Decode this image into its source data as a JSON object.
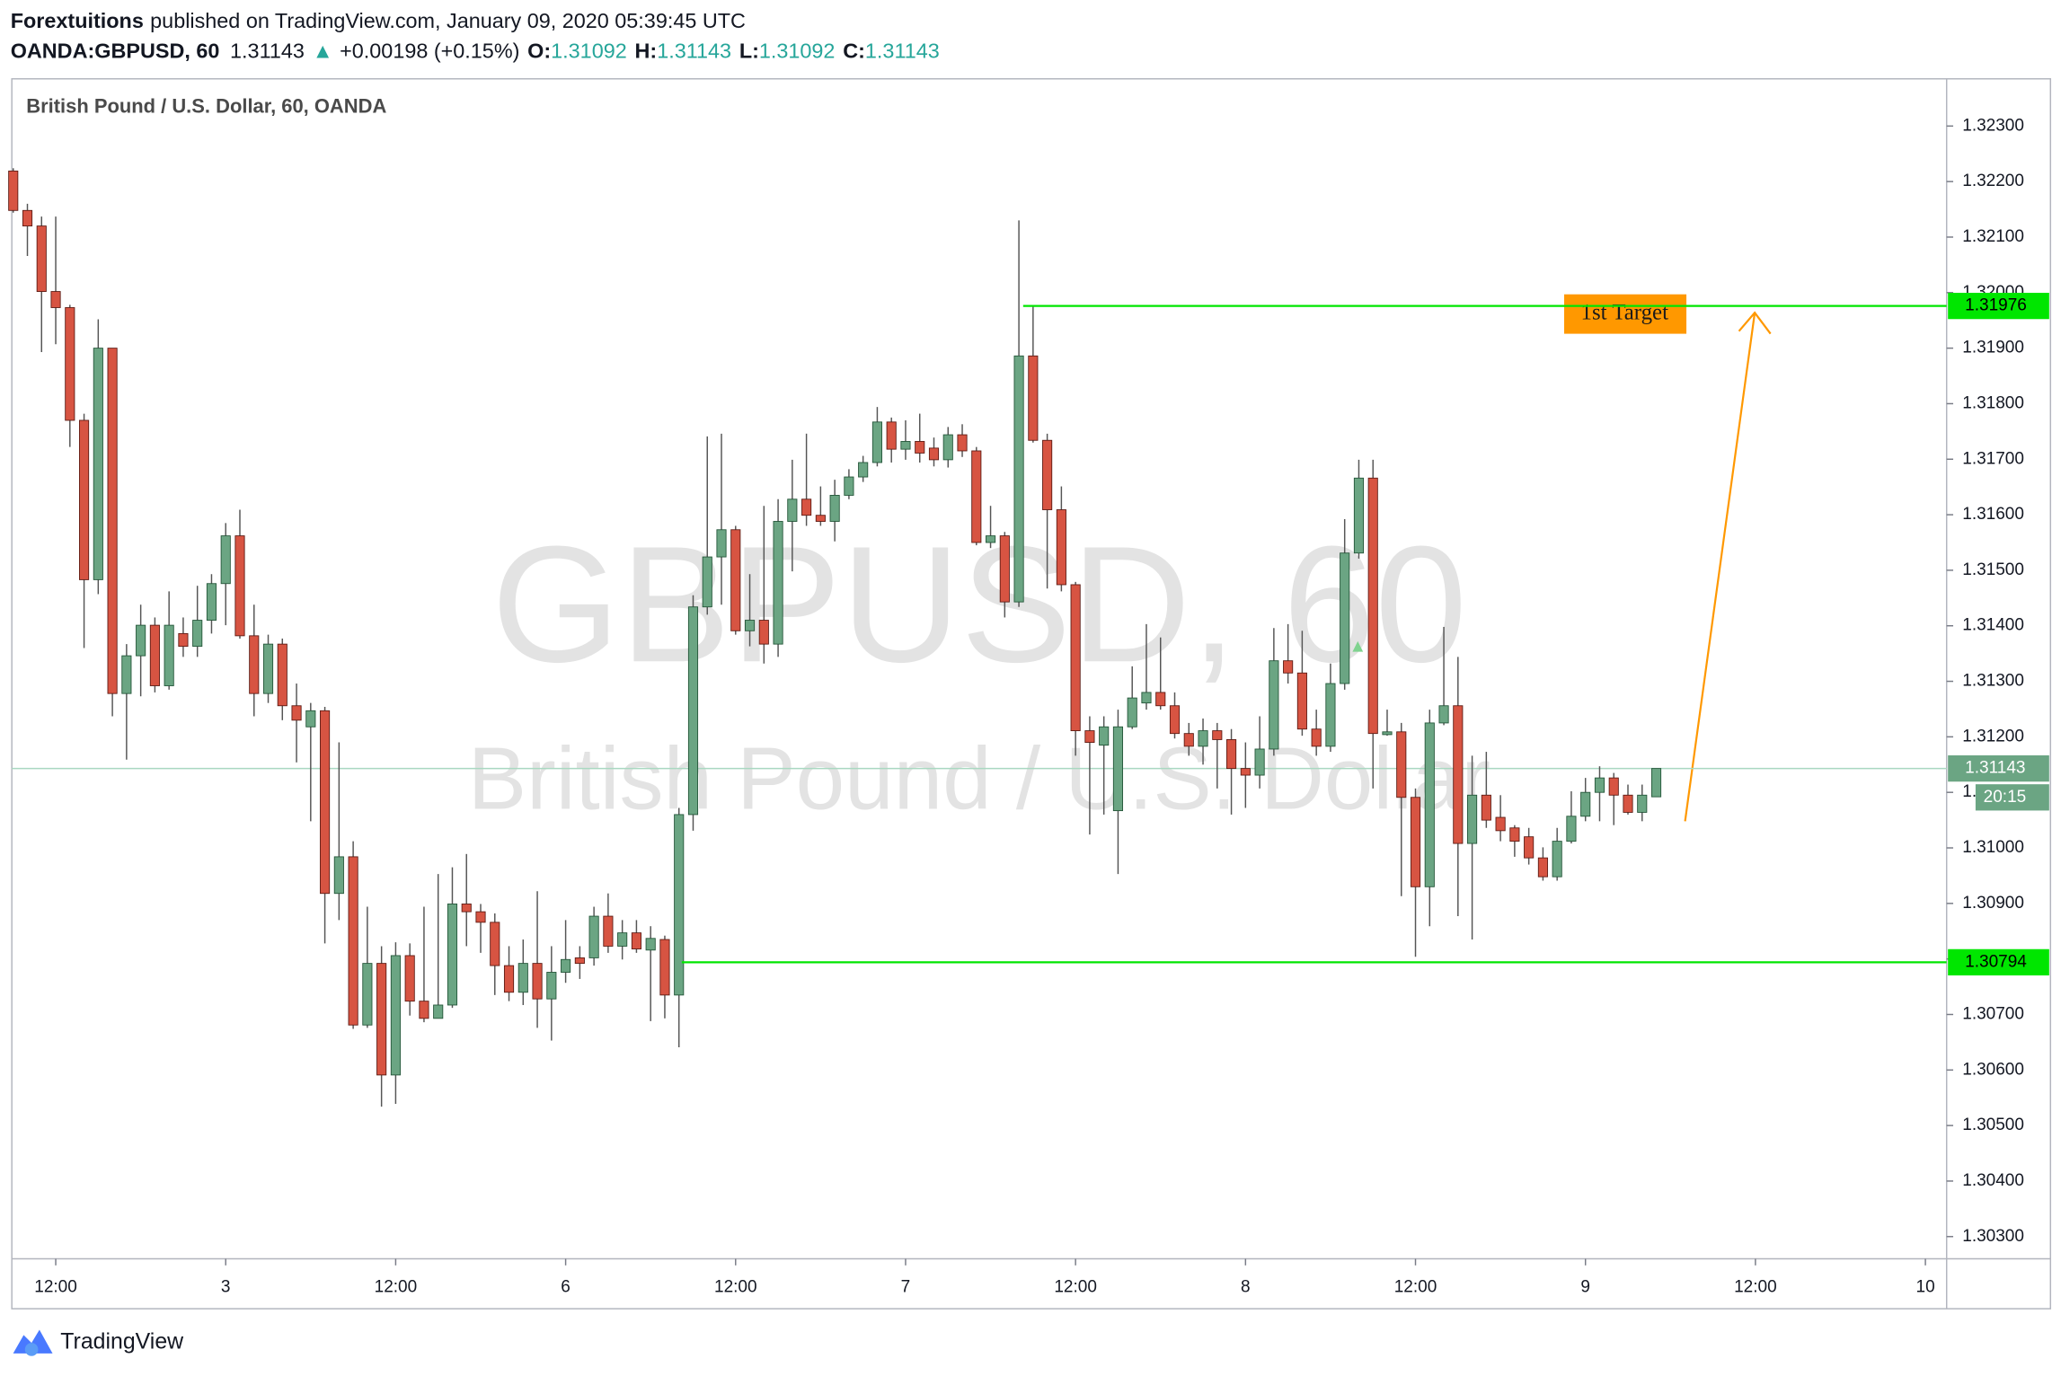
{
  "header": {
    "publisher": "Forextuitions",
    "published_text": "published on TradingView.com, January 09, 2020 05:39:45 UTC"
  },
  "symbol_bar": {
    "symbol": "OANDA:GBPUSD, 60",
    "last": 1.31143,
    "arrow": "▲",
    "change": "+0.00198 (+0.15%)",
    "o_label": "O:",
    "open": 1.31092,
    "h_label": "H:",
    "high": 1.31143,
    "l_label": "L:",
    "low": 1.31092,
    "c_label": "C:",
    "close": 1.31143
  },
  "footer": {
    "brand": "TradingView"
  },
  "chart_data": {
    "type": "candlestick",
    "title": "British Pound / U.S. Dollar, 60, OANDA",
    "watermark": "GBPUSD, 60",
    "watermark_subtitle": "British Pound / U.S. Dollar",
    "up_color": "#6ba583",
    "down_color": "#d75442",
    "up_border": "#225437",
    "down_border": "#5b1a13",
    "wick_color": "#555555",
    "grid": false,
    "xlim": [
      -0.1,
      136.5
    ],
    "xticks": [
      {
        "value": 3,
        "label": "12:00"
      },
      {
        "value": 15,
        "label": "3"
      },
      {
        "value": 27,
        "label": "12:00"
      },
      {
        "value": 39,
        "label": "6"
      },
      {
        "value": 51,
        "label": "12:00"
      },
      {
        "value": 63,
        "label": "7"
      },
      {
        "value": 75,
        "label": "12:00"
      },
      {
        "value": 87,
        "label": "8"
      },
      {
        "value": 99,
        "label": "12:00"
      },
      {
        "value": 111,
        "label": "9"
      },
      {
        "value": 123,
        "label": "12:00"
      },
      {
        "value": 135,
        "label": "10"
      }
    ],
    "ylim": [
      1.3026,
      1.32385
    ],
    "yticks": [
      {
        "value": 1.303,
        "label": "1.30300"
      },
      {
        "value": 1.304,
        "label": "1.30400"
      },
      {
        "value": 1.305,
        "label": "1.30500"
      },
      {
        "value": 1.306,
        "label": "1.30600"
      },
      {
        "value": 1.307,
        "label": "1.30700"
      },
      {
        "value": 1.308,
        "label": "1.30800"
      },
      {
        "value": 1.309,
        "label": "1.30900"
      },
      {
        "value": 1.31,
        "label": "1.31000"
      },
      {
        "value": 1.311,
        "label": "1.31100"
      },
      {
        "value": 1.312,
        "label": "1.31200"
      },
      {
        "value": 1.313,
        "label": "1.31300"
      },
      {
        "value": 1.314,
        "label": "1.31400"
      },
      {
        "value": 1.315,
        "label": "1.31500"
      },
      {
        "value": 1.316,
        "label": "1.31600"
      },
      {
        "value": 1.317,
        "label": "1.31700"
      },
      {
        "value": 1.318,
        "label": "1.31800"
      },
      {
        "value": 1.319,
        "label": "1.31900"
      },
      {
        "value": 1.32,
        "label": "1.32000"
      },
      {
        "value": 1.321,
        "label": "1.32100"
      },
      {
        "value": 1.322,
        "label": "1.32200"
      },
      {
        "value": 1.323,
        "label": "1.32300"
      }
    ],
    "open": [
      1.32219,
      1.32148,
      1.3212,
      1.32002,
      1.31973,
      1.3177,
      1.31483,
      1.319,
      1.31278,
      1.31346,
      1.31401,
      1.31292,
      1.31386,
      1.31363,
      1.3141,
      1.31476,
      1.31562,
      1.31382,
      1.31278,
      1.31367,
      1.31256,
      1.31218,
      1.31247,
      1.30918,
      1.30984,
      1.30681,
      1.30792,
      1.30591,
      1.30806,
      1.30724,
      1.30693,
      1.30717,
      1.30899,
      1.30885,
      1.30866,
      1.30788,
      1.3074,
      1.30792,
      1.30728,
      1.30776,
      1.30802,
      1.30802,
      1.30877,
      1.30823,
      1.30847,
      1.30816,
      1.30835,
      1.30735,
      1.3106,
      1.31434,
      1.31524,
      1.31573,
      1.31391,
      1.3141,
      1.31367,
      1.31588,
      1.31628,
      1.31599,
      1.31588,
      1.31635,
      1.31668,
      1.31694,
      1.31767,
      1.31718,
      1.31732,
      1.3172,
      1.31699,
      1.31744,
      1.31715,
      1.3155,
      1.31562,
      1.31443,
      1.31886,
      1.31734,
      1.31609,
      1.31474,
      1.31211,
      1.31185,
      1.31067,
      1.31218,
      1.31261,
      1.3128,
      1.31256,
      1.31206,
      1.31183,
      1.31211,
      1.31195,
      1.31143,
      1.31131,
      1.31178,
      1.31337,
      1.31315,
      1.31214,
      1.31183,
      1.31296,
      1.31531,
      1.31666,
      1.31204,
      1.31209,
      1.31091,
      1.3093,
      1.31225,
      1.31256,
      1.31008,
      1.31095,
      1.31055,
      1.31036,
      1.3102,
      1.30982,
      1.30948,
      1.31012,
      1.31057,
      1.311,
      1.31126,
      1.31095,
      1.31064,
      1.31092
    ],
    "high": [
      1.32224,
      1.3216,
      1.32137,
      1.32137,
      1.31978,
      1.31782,
      1.31952,
      1.319,
      1.31367,
      1.31438,
      1.31415,
      1.31462,
      1.31415,
      1.31472,
      1.31493,
      1.31585,
      1.31609,
      1.31438,
      1.31384,
      1.31377,
      1.31296,
      1.31261,
      1.31254,
      1.3119,
      1.31012,
      1.30894,
      1.30823,
      1.3083,
      1.30828,
      1.30894,
      1.30953,
      1.30965,
      1.30989,
      1.30899,
      1.30882,
      1.30823,
      1.30835,
      1.30922,
      1.30823,
      1.3087,
      1.30823,
      1.30894,
      1.30918,
      1.3087,
      1.3087,
      1.30859,
      1.30842,
      1.31072,
      1.31455,
      1.31741,
      1.31746,
      1.3158,
      1.31493,
      1.31616,
      1.31628,
      1.31699,
      1.31746,
      1.31651,
      1.31663,
      1.31682,
      1.31706,
      1.31794,
      1.31775,
      1.3177,
      1.31782,
      1.31739,
      1.31758,
      1.31763,
      1.31722,
      1.31616,
      1.31569,
      1.3213,
      1.31976,
      1.31746,
      1.31651,
      1.31479,
      1.31237,
      1.31237,
      1.31249,
      1.31327,
      1.31403,
      1.31379,
      1.3128,
      1.31225,
      1.31233,
      1.31225,
      1.31214,
      1.3119,
      1.31237,
      1.31396,
      1.31403,
      1.31391,
      1.31249,
      1.31332,
      1.31592,
      1.31699,
      1.31699,
      1.31249,
      1.31225,
      1.31107,
      1.31249,
      1.31398,
      1.31344,
      1.31166,
      1.31173,
      1.31095,
      1.31041,
      1.31036,
      1.31001,
      1.31036,
      1.31102,
      1.31126,
      1.31147,
      1.31135,
      1.31114,
      1.31114,
      1.31143
    ],
    "low": [
      1.32144,
      1.32066,
      1.31893,
      1.31907,
      1.31722,
      1.3136,
      1.31457,
      1.31237,
      1.31159,
      1.31273,
      1.3128,
      1.31285,
      1.31344,
      1.31344,
      1.31386,
      1.31401,
      1.31377,
      1.31237,
      1.31261,
      1.3123,
      1.31154,
      1.31048,
      1.30828,
      1.3087,
      1.30674,
      1.30676,
      1.30534,
      1.30539,
      1.30698,
      1.30686,
      1.30693,
      1.30712,
      1.30823,
      1.30811,
      1.30735,
      1.30724,
      1.30717,
      1.30676,
      1.30653,
      1.30757,
      1.30764,
      1.30788,
      1.30811,
      1.30799,
      1.30811,
      1.30688,
      1.30693,
      1.30641,
      1.31031,
      1.3142,
      1.31438,
      1.31384,
      1.31363,
      1.31332,
      1.31344,
      1.31498,
      1.3158,
      1.3158,
      1.31552,
      1.31628,
      1.31659,
      1.31687,
      1.31694,
      1.31699,
      1.31694,
      1.31687,
      1.31685,
      1.31704,
      1.31545,
      1.3154,
      1.31415,
      1.31434,
      1.3173,
      1.31467,
      1.31462,
      1.31166,
      1.31024,
      1.3106,
      1.30953,
      1.31214,
      1.31249,
      1.31249,
      1.31197,
      1.31166,
      1.3115,
      1.31107,
      1.3106,
      1.31072,
      1.31107,
      1.31166,
      1.31296,
      1.31202,
      1.31166,
      1.31173,
      1.31285,
      1.31521,
      1.31107,
      1.31202,
      1.30913,
      1.30804,
      1.30859,
      1.31221,
      1.30877,
      1.30835,
      1.31036,
      1.31012,
      1.30984,
      1.3097,
      1.30941,
      1.30941,
      1.31008,
      1.31048,
      1.31048,
      1.31041,
      1.3106,
      1.31048,
      1.31092
    ],
    "close": [
      1.32148,
      1.3212,
      1.32002,
      1.31973,
      1.3177,
      1.31483,
      1.319,
      1.31278,
      1.31346,
      1.31401,
      1.31292,
      1.31401,
      1.31363,
      1.3141,
      1.31476,
      1.31562,
      1.31382,
      1.31278,
      1.31367,
      1.31256,
      1.3123,
      1.31247,
      1.30918,
      1.30984,
      1.30681,
      1.30792,
      1.30591,
      1.30806,
      1.30724,
      1.30693,
      1.30717,
      1.30899,
      1.30885,
      1.30866,
      1.30788,
      1.3074,
      1.30792,
      1.30728,
      1.30776,
      1.30799,
      1.30792,
      1.30877,
      1.30823,
      1.30847,
      1.30818,
      1.30837,
      1.30735,
      1.3106,
      1.31434,
      1.31524,
      1.31573,
      1.31391,
      1.3141,
      1.31367,
      1.31588,
      1.31628,
      1.31599,
      1.31588,
      1.31635,
      1.31668,
      1.31694,
      1.31767,
      1.31718,
      1.31732,
      1.31711,
      1.31699,
      1.31744,
      1.31715,
      1.3155,
      1.31562,
      1.31443,
      1.31886,
      1.31734,
      1.31609,
      1.31474,
      1.31211,
      1.3119,
      1.31218,
      1.31218,
      1.3127,
      1.3128,
      1.31256,
      1.31206,
      1.31183,
      1.31211,
      1.31195,
      1.31143,
      1.31131,
      1.31178,
      1.31337,
      1.31315,
      1.31214,
      1.31183,
      1.31296,
      1.31531,
      1.31666,
      1.31206,
      1.31209,
      1.31091,
      1.3093,
      1.31225,
      1.31256,
      1.31008,
      1.31095,
      1.3105,
      1.31031,
      1.31012,
      1.30982,
      1.30948,
      1.31012,
      1.31057,
      1.311,
      1.31126,
      1.31095,
      1.31064,
      1.31095,
      1.31143
    ],
    "hlines": [
      {
        "value": 1.31976,
        "color": "#00e600"
      },
      {
        "value": 1.30794,
        "color": "#00e600"
      }
    ],
    "last_price": 1.31143,
    "countdown": "20:15",
    "annotation": "1st Target"
  }
}
